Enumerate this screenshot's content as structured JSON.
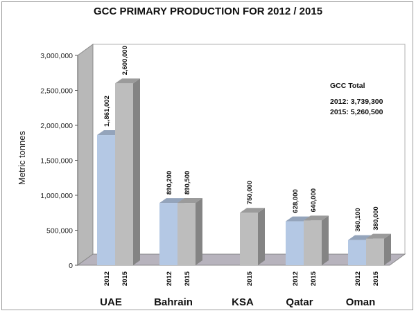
{
  "chart_data": {
    "type": "bar",
    "title": "GCC PRIMARY PRODUCTION FOR 2012 / 2015",
    "ylabel": "Metric tonnes",
    "xlabel": "",
    "ylim": [
      0,
      3000000
    ],
    "yticks": [
      "0",
      "500,000",
      "1,000,000",
      "1,500,000",
      "2,000,000",
      "2,500,000",
      "3,000,000"
    ],
    "grid": false,
    "categories": [
      "UAE",
      "Bahrain",
      "KSA",
      "Qatar",
      "Oman"
    ],
    "bars": [
      {
        "category": "UAE",
        "year": "2012",
        "value": 1861002,
        "label": "1,,861,002",
        "color": "#b4c8e4"
      },
      {
        "category": "UAE",
        "year": "2015",
        "value": 2600000,
        "label": "2,600,000",
        "color": "#bdbdbd"
      },
      {
        "category": "Bahrain",
        "year": "2012",
        "value": 890200,
        "label": "890,200",
        "color": "#b4c8e4"
      },
      {
        "category": "Bahrain",
        "year": "2015",
        "value": 890500,
        "label": "890,500",
        "color": "#bdbdbd"
      },
      {
        "category": "KSA",
        "year": "2015",
        "value": 750000,
        "label": "750,000",
        "color": "#bdbdbd"
      },
      {
        "category": "Qatar",
        "year": "2012",
        "value": 628000,
        "label": "628,000",
        "color": "#b4c8e4"
      },
      {
        "category": "Qatar",
        "year": "2015",
        "value": 640000,
        "label": "640,000",
        "color": "#bdbdbd"
      },
      {
        "category": "Oman",
        "year": "2012",
        "value": 360100,
        "label": "360,100",
        "color": "#b4c8e4"
      },
      {
        "category": "Oman",
        "year": "2015",
        "value": 380000,
        "label": "380,000",
        "color": "#bdbdbd"
      }
    ],
    "annotation": {
      "heading": "GCC Total",
      "line1": "2012: 3,739,300",
      "line2": "2015: 5,260,500"
    }
  }
}
